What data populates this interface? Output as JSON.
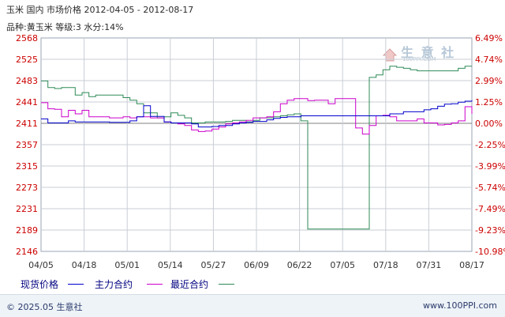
{
  "header": {
    "title": "玉米 国内 市场价格 2012-04-05 - 2012-08-17",
    "spec": "品种:黄玉米 等级:3 水分:14%"
  },
  "watermark": {
    "text": "生 意 社",
    "url": "100PPI.COM"
  },
  "footer": {
    "copyright": "© 2025.05 生意社",
    "url": "www.100PPI.com"
  },
  "colors": {
    "spot": "#0000cc",
    "main": "#cc00cc",
    "recent": "#2e8b57",
    "left_axis": "#cc0000",
    "right_axis": "#cc0000",
    "grid": "#c9ced6",
    "zero_line": "#808080"
  },
  "chart_data": {
    "type": "line",
    "y_left": {
      "min": 2146,
      "max": 2568,
      "ticks": [
        "2568",
        "2525",
        "2483",
        "2441",
        "2411",
        "2357",
        "2315",
        "2273",
        "2231",
        "2189",
        "2146"
      ]
    },
    "y_right": {
      "min": -10.98,
      "max": 6.49,
      "ticks": [
        "6.49%",
        "4.74%",
        "2.99%",
        "1.25%",
        "0.00%",
        "-2.25%",
        "-3.99%",
        "-5.74%",
        "-7.49%",
        "-9.23%",
        "-10.98%"
      ]
    },
    "x_ticks": [
      "04/05",
      "04/18",
      "05/01",
      "05/14",
      "05/27",
      "06/09",
      "06/22",
      "07/05",
      "07/18",
      "07/31",
      "08/17"
    ],
    "legend": [
      {
        "name": "现货价格",
        "color": "#0000cc"
      },
      {
        "name": "主力合约",
        "color": "#cc00cc"
      },
      {
        "name": "最近合约",
        "color": "#2e8b57"
      }
    ],
    "series": [
      {
        "name": "现货价格",
        "axis": "left",
        "values": [
          2408,
          2400,
          2400,
          2400,
          2404,
          2402,
          2402,
          2402,
          2402,
          2402,
          2401,
          2401,
          2401,
          2404,
          2412,
          2434,
          2413,
          2413,
          2402,
          2400,
          2400,
          2400,
          2398,
          2392,
          2392,
          2393,
          2395,
          2395,
          2398,
          2400,
          2401,
          2403,
          2403,
          2406,
          2409,
          2411,
          2412,
          2412,
          2414,
          2414,
          2414,
          2414,
          2414,
          2414,
          2414,
          2414,
          2414,
          2414,
          2414,
          2414,
          2414,
          2418,
          2418,
          2422,
          2422,
          2422,
          2426,
          2428,
          2433,
          2437,
          2438,
          2441,
          2443,
          2445
        ]
      },
      {
        "name": "主力合约",
        "axis": "left",
        "values": [
          2440,
          2428,
          2427,
          2412,
          2425,
          2418,
          2425,
          2412,
          2412,
          2412,
          2410,
          2410,
          2412,
          2410,
          2412,
          2412,
          2410,
          2410,
          2402,
          2400,
          2398,
          2395,
          2386,
          2383,
          2384,
          2388,
          2392,
          2398,
          2400,
          2402,
          2405,
          2410,
          2410,
          2412,
          2422,
          2438,
          2445,
          2448,
          2448,
          2444,
          2445,
          2445,
          2438,
          2448,
          2448,
          2448,
          2390,
          2378,
          2395,
          2414,
          2415,
          2412,
          2404,
          2404,
          2404,
          2408,
          2400,
          2400,
          2396,
          2397,
          2400,
          2404,
          2432,
          2418
        ]
      },
      {
        "name": "最近合约",
        "axis": "left",
        "values": [
          2483,
          2470,
          2468,
          2470,
          2470,
          2455,
          2460,
          2452,
          2455,
          2455,
          2455,
          2455,
          2450,
          2445,
          2438,
          2420,
          2420,
          2410,
          2412,
          2420,
          2415,
          2410,
          2400,
          2400,
          2402,
          2402,
          2402,
          2403,
          2405,
          2405,
          2402,
          2405,
          2410,
          2410,
          2412,
          2414,
          2416,
          2418,
          2404,
          2190,
          2190,
          2190,
          2190,
          2190,
          2190,
          2190,
          2190,
          2190,
          2490,
          2495,
          2505,
          2512,
          2510,
          2508,
          2505,
          2503,
          2503,
          2503,
          2503,
          2503,
          2503,
          2508,
          2512,
          2512
        ]
      }
    ]
  }
}
